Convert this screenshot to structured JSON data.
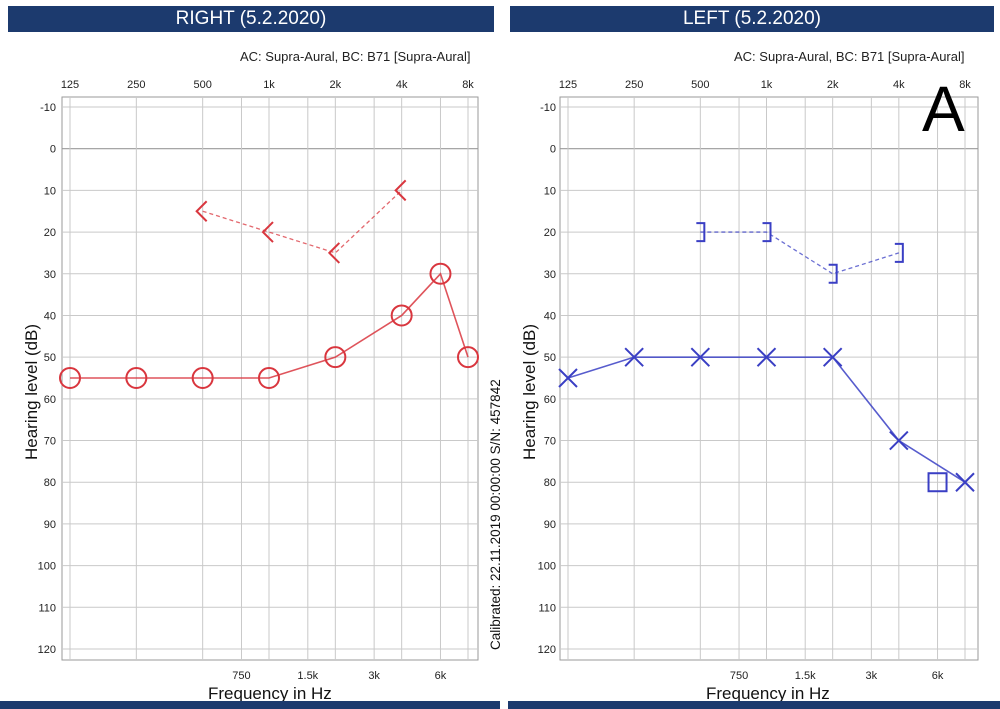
{
  "chart_data": [
    {
      "type": "line",
      "title": "RIGHT  (5.2.2020)",
      "device": "AC: Supra-Aural, BC: B71 [Supra-Aural]",
      "xlabel": "Frequency in Hz",
      "ylabel": "Hearing level (dB)",
      "xscale": "log",
      "top_ticks": [
        "125",
        "250",
        "500",
        "1k",
        "2k",
        "4k",
        "8k"
      ],
      "top_tick_values": [
        125,
        250,
        500,
        1000,
        2000,
        4000,
        8000
      ],
      "bottom_ticks": [
        "750",
        "1.5k",
        "3k",
        "6k"
      ],
      "bottom_tick_values": [
        750,
        1500,
        3000,
        6000
      ],
      "ytick_labels": [
        "-10",
        "0",
        "10",
        "20",
        "30",
        "40",
        "50",
        "60",
        "70",
        "80",
        "90",
        "100",
        "110",
        "120"
      ],
      "ylim": [
        -10,
        120
      ],
      "y_inverted": true,
      "grid": true,
      "series": [
        {
          "symbol": "circle",
          "line": "solid",
          "color": "#d9363e",
          "x": [
            125,
            250,
            500,
            1000,
            2000,
            4000,
            6000,
            8000
          ],
          "y": [
            55,
            55,
            55,
            55,
            50,
            40,
            30,
            50
          ]
        },
        {
          "symbol": "bc-right",
          "line": "dashed",
          "color": "#d9363e",
          "x": [
            500,
            1000,
            2000,
            4000
          ],
          "y": [
            15,
            20,
            25,
            10
          ]
        }
      ]
    },
    {
      "type": "line",
      "title": "LEFT  (5.2.2020)",
      "device": "AC: Supra-Aural, BC: B71 [Supra-Aural]",
      "xlabel": "Frequency in Hz",
      "ylabel": "Hearing level (dB)",
      "xscale": "log",
      "top_ticks": [
        "125",
        "250",
        "500",
        "1k",
        "2k",
        "4k",
        "8k"
      ],
      "top_tick_values": [
        125,
        250,
        500,
        1000,
        2000,
        4000,
        8000
      ],
      "bottom_ticks": [
        "750",
        "1.5k",
        "3k",
        "6k"
      ],
      "bottom_tick_values": [
        750,
        1500,
        3000,
        6000
      ],
      "ytick_labels": [
        "-10",
        "0",
        "10",
        "20",
        "30",
        "40",
        "50",
        "60",
        "70",
        "80",
        "90",
        "100",
        "110",
        "120"
      ],
      "ylim": [
        -10,
        120
      ],
      "y_inverted": true,
      "grid": true,
      "series": [
        {
          "symbol": "cross",
          "line": "solid",
          "color": "#3a3fc4",
          "x": [
            125,
            250,
            500,
            1000,
            2000,
            4000,
            8000
          ],
          "y": [
            55,
            50,
            50,
            50,
            50,
            70,
            80
          ]
        },
        {
          "symbol": "square",
          "line": "none",
          "color": "#3a3fc4",
          "x": [
            6000
          ],
          "y": [
            80
          ]
        },
        {
          "symbol": "bc-left",
          "line": "dashed",
          "color": "#3a3fc4",
          "x": [
            500,
            1000,
            2000,
            4000
          ],
          "y": [
            20,
            20,
            30,
            25
          ]
        }
      ]
    }
  ],
  "panel_letter": "A",
  "calibration": "Calibrated: 22.11.2019 00:00:00  S/N: 457842"
}
